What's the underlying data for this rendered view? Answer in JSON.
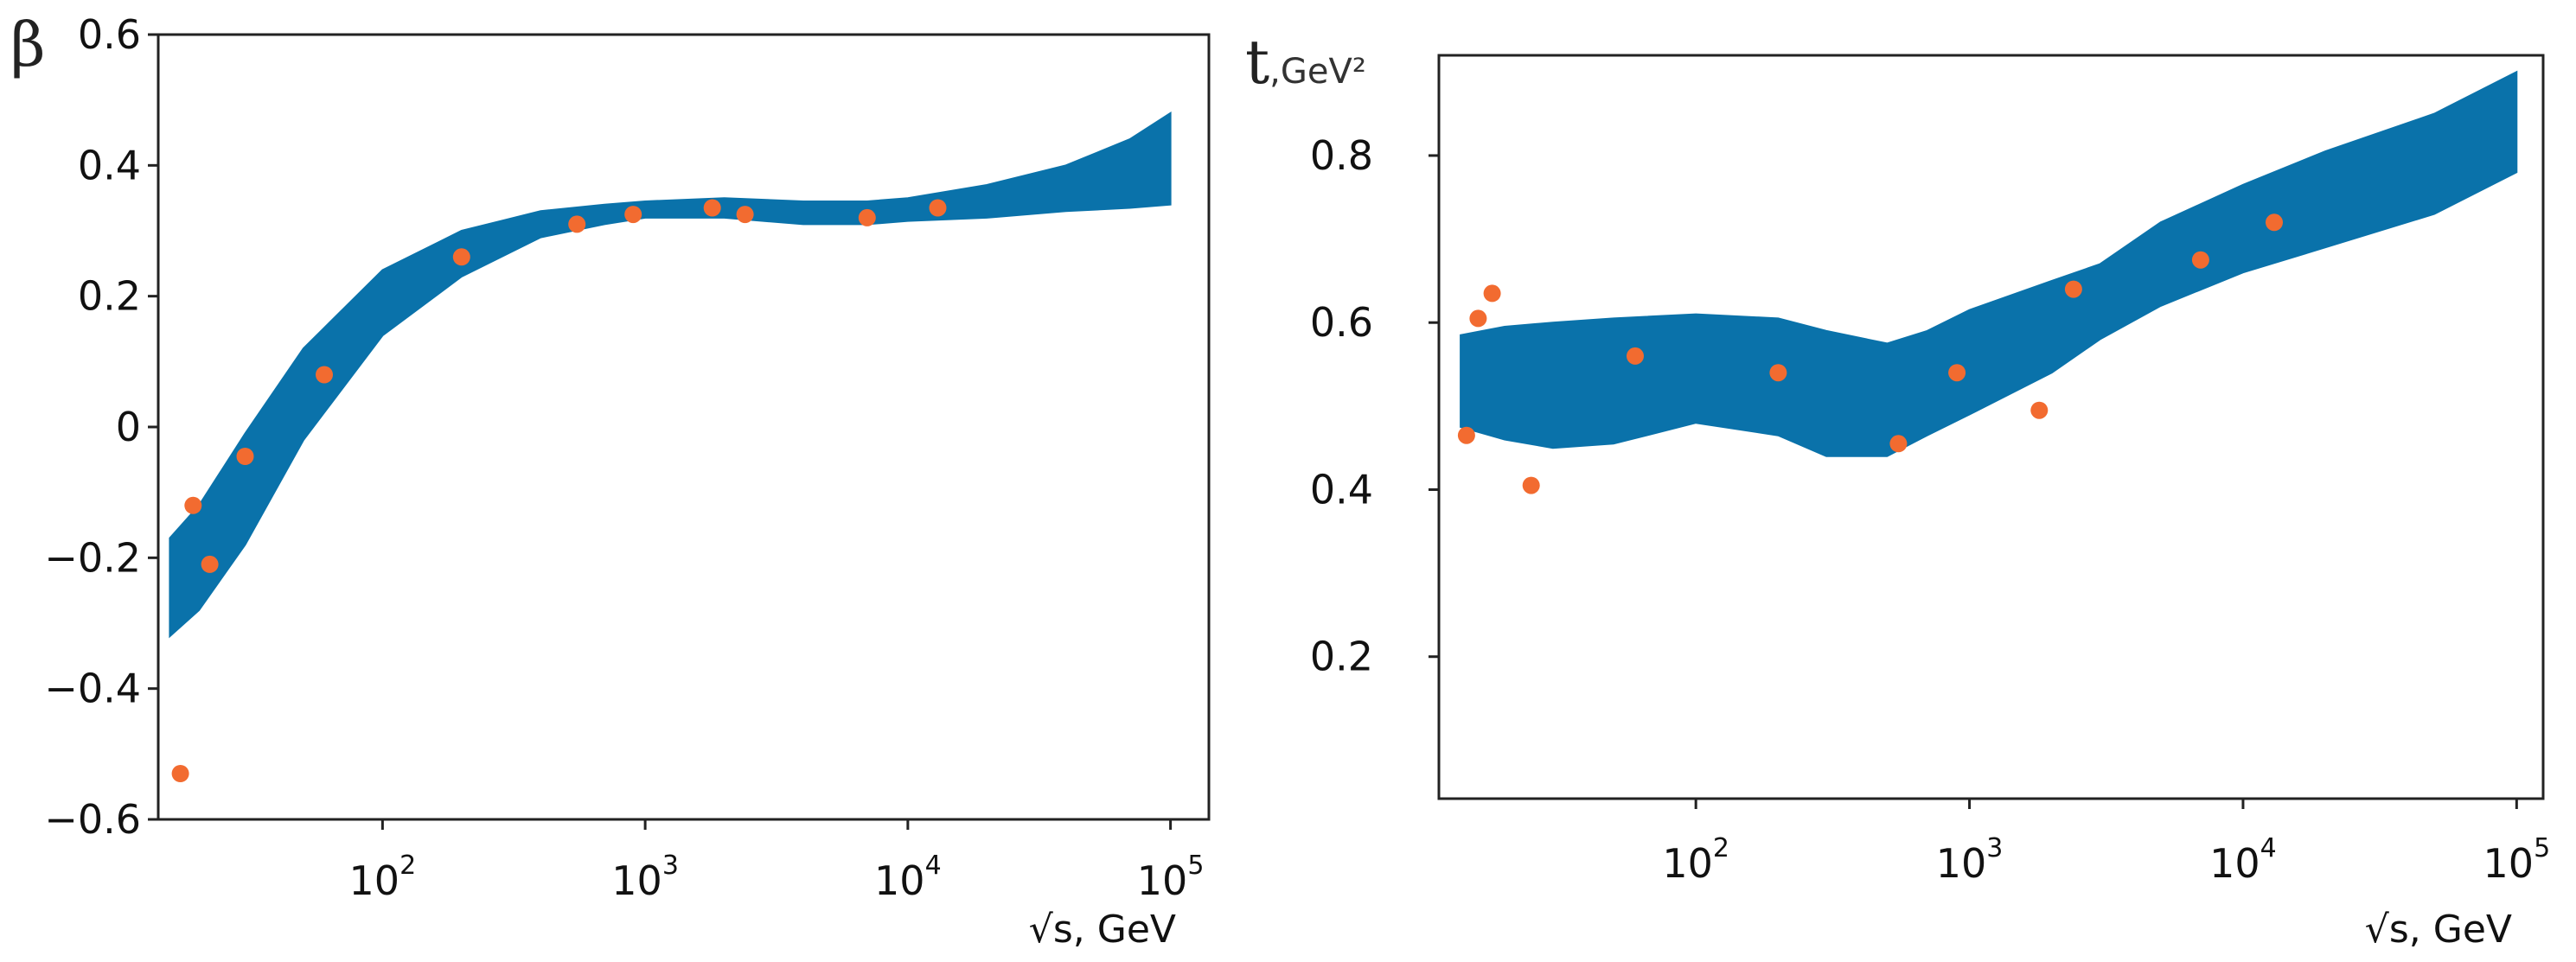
{
  "chart_data": [
    {
      "id": "beta",
      "type": "scatter",
      "title": "",
      "ylabel": "β",
      "ylabel_unit": "",
      "xlabel": "√s, GeV",
      "xscale": "log",
      "xlim": [
        14,
        140000
      ],
      "ylim": [
        -0.6,
        0.6
      ],
      "yticks": [
        {
          "value": 0.6,
          "label": "0.6"
        },
        {
          "value": 0.4,
          "label": "0.4"
        },
        {
          "value": 0.2,
          "label": "0.2"
        },
        {
          "value": 0.0,
          "label": "0"
        },
        {
          "value": -0.2,
          "label": "−0.2"
        },
        {
          "value": -0.4,
          "label": "−0.4"
        },
        {
          "value": -0.6,
          "label": "−0.6"
        }
      ],
      "xticks": [
        {
          "value": 100,
          "base": "10",
          "exp": "2"
        },
        {
          "value": 1000,
          "base": "10",
          "exp": "3"
        },
        {
          "value": 10000,
          "base": "10",
          "exp": "4"
        },
        {
          "value": 100000,
          "base": "10",
          "exp": "5"
        }
      ],
      "band": {
        "color": "#0a72aa",
        "x": [
          15.5,
          20,
          30,
          50,
          100,
          200,
          400,
          700,
          1000,
          2000,
          4000,
          7000,
          10000,
          20000,
          40000,
          70000,
          100000
        ],
        "lower": [
          -0.32,
          -0.28,
          -0.18,
          -0.02,
          0.14,
          0.23,
          0.29,
          0.31,
          0.32,
          0.32,
          0.31,
          0.31,
          0.315,
          0.32,
          0.33,
          0.335,
          0.34
        ],
        "upper": [
          -0.17,
          -0.12,
          -0.01,
          0.12,
          0.24,
          0.3,
          0.33,
          0.34,
          0.345,
          0.35,
          0.345,
          0.345,
          0.35,
          0.37,
          0.4,
          0.44,
          0.48
        ]
      },
      "points": {
        "color": "#f26b30",
        "x": [
          17,
          19,
          22,
          30,
          60,
          200,
          550,
          900,
          1800,
          2400,
          7000,
          13000
        ],
        "y": [
          -0.53,
          -0.12,
          -0.21,
          -0.045,
          0.08,
          0.26,
          0.31,
          0.325,
          0.335,
          0.325,
          0.32,
          0.335
        ]
      }
    },
    {
      "id": "t",
      "type": "scatter",
      "title": "",
      "ylabel": "t",
      "ylabel_unit": ",GeV²",
      "xlabel": "√s, GeV",
      "xscale": "log",
      "xlim": [
        11.5,
        125000
      ],
      "ylim": [
        0.03,
        0.92
      ],
      "yticks": [
        {
          "value": 0.8,
          "label": "0.8"
        },
        {
          "value": 0.6,
          "label": "0.6"
        },
        {
          "value": 0.4,
          "label": "0.4"
        },
        {
          "value": 0.2,
          "label": "0.2"
        }
      ],
      "xticks": [
        {
          "value": 100,
          "base": "10",
          "exp": "2"
        },
        {
          "value": 1000,
          "base": "10",
          "exp": "3"
        },
        {
          "value": 10000,
          "base": "10",
          "exp": "4"
        },
        {
          "value": 100000,
          "base": "10",
          "exp": "5"
        }
      ],
      "band": {
        "color": "#0a72aa",
        "x": [
          13.8,
          20,
          30,
          50,
          100,
          200,
          300,
          500,
          700,
          1000,
          2000,
          3000,
          5000,
          10000,
          20000,
          50000,
          100000
        ],
        "lower": [
          0.475,
          0.46,
          0.45,
          0.455,
          0.48,
          0.465,
          0.44,
          0.44,
          0.465,
          0.49,
          0.54,
          0.58,
          0.62,
          0.66,
          0.69,
          0.73,
          0.78
        ],
        "upper": [
          0.585,
          0.595,
          0.6,
          0.605,
          0.61,
          0.605,
          0.59,
          0.575,
          0.59,
          0.615,
          0.65,
          0.67,
          0.72,
          0.765,
          0.805,
          0.85,
          0.9
        ]
      },
      "points": {
        "color": "#f26b30",
        "x": [
          14.5,
          16,
          18,
          25,
          60,
          200,
          550,
          900,
          1800,
          2400,
          7000,
          13000
        ],
        "y": [
          0.465,
          0.605,
          0.635,
          0.405,
          0.56,
          0.54,
          0.455,
          0.54,
          0.495,
          0.64,
          0.675,
          0.72
        ]
      }
    }
  ]
}
